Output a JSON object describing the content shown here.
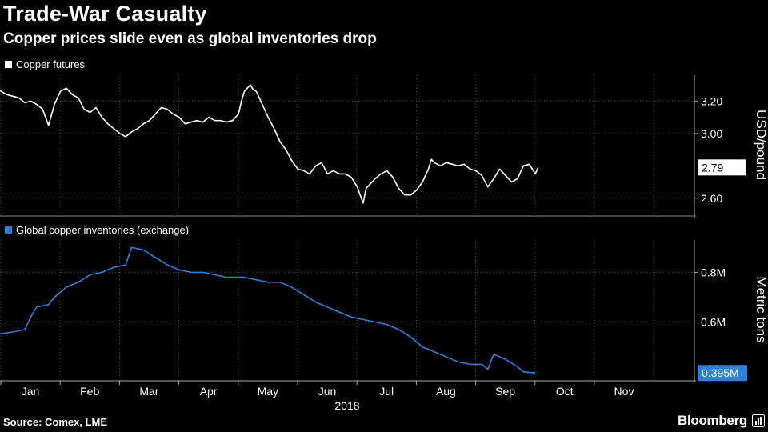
{
  "header": {
    "title": "Trade-War Casualty",
    "subtitle": "Copper prices slide even as global inventories drop"
  },
  "footer": {
    "source": "Source: Comex, LME",
    "brand": "Bloomberg"
  },
  "colors": {
    "background": "#000000",
    "price_line": "#ffffff",
    "inventory_line": "#2f80d8",
    "grid": "#555555"
  },
  "chart_data": [
    {
      "type": "line",
      "series": [
        {
          "name": "Copper futures"
        }
      ],
      "ylabel": "USD/pound",
      "yticks": [
        2.6,
        3.0,
        3.2
      ],
      "ytick_labels": [
        "2.60",
        "3.00",
        "3.20"
      ],
      "ylim": [
        2.5,
        3.36
      ],
      "last_value": 2.79,
      "last_value_label": "2.79",
      "grid": true,
      "points": [
        [
          0.0,
          3.29
        ],
        [
          0.1,
          3.26
        ],
        [
          0.2,
          3.24
        ],
        [
          0.3,
          3.23
        ],
        [
          0.4,
          3.22
        ],
        [
          0.5,
          3.19
        ],
        [
          0.6,
          3.2
        ],
        [
          0.7,
          3.18
        ],
        [
          0.8,
          3.15
        ],
        [
          0.9,
          3.05
        ],
        [
          1.0,
          3.18
        ],
        [
          1.1,
          3.26
        ],
        [
          1.2,
          3.28
        ],
        [
          1.3,
          3.24
        ],
        [
          1.4,
          3.22
        ],
        [
          1.5,
          3.15
        ],
        [
          1.6,
          3.13
        ],
        [
          1.7,
          3.16
        ],
        [
          1.8,
          3.1
        ],
        [
          1.9,
          3.06
        ],
        [
          2.0,
          3.03
        ],
        [
          2.1,
          3.0
        ],
        [
          2.2,
          2.98
        ],
        [
          2.3,
          3.01
        ],
        [
          2.4,
          3.03
        ],
        [
          2.5,
          3.06
        ],
        [
          2.6,
          3.08
        ],
        [
          2.7,
          3.12
        ],
        [
          2.8,
          3.16
        ],
        [
          2.9,
          3.15
        ],
        [
          3.0,
          3.12
        ],
        [
          3.1,
          3.1
        ],
        [
          3.2,
          3.06
        ],
        [
          3.3,
          3.07
        ],
        [
          3.4,
          3.08
        ],
        [
          3.5,
          3.07
        ],
        [
          3.6,
          3.1
        ],
        [
          3.7,
          3.08
        ],
        [
          3.8,
          3.08
        ],
        [
          3.9,
          3.07
        ],
        [
          4.0,
          3.08
        ],
        [
          4.1,
          3.12
        ],
        [
          4.15,
          3.2
        ],
        [
          4.2,
          3.26
        ],
        [
          4.25,
          3.28
        ],
        [
          4.3,
          3.3
        ],
        [
          4.35,
          3.27
        ],
        [
          4.4,
          3.26
        ],
        [
          4.5,
          3.18
        ],
        [
          4.6,
          3.1
        ],
        [
          4.7,
          3.03
        ],
        [
          4.8,
          2.95
        ],
        [
          4.9,
          2.9
        ],
        [
          5.0,
          2.83
        ],
        [
          5.1,
          2.78
        ],
        [
          5.2,
          2.77
        ],
        [
          5.3,
          2.75
        ],
        [
          5.4,
          2.8
        ],
        [
          5.5,
          2.82
        ],
        [
          5.6,
          2.75
        ],
        [
          5.7,
          2.77
        ],
        [
          5.8,
          2.75
        ],
        [
          5.9,
          2.75
        ],
        [
          6.0,
          2.73
        ],
        [
          6.1,
          2.67
        ],
        [
          6.2,
          2.57
        ],
        [
          6.25,
          2.66
        ],
        [
          6.3,
          2.68
        ],
        [
          6.4,
          2.72
        ],
        [
          6.5,
          2.75
        ],
        [
          6.6,
          2.77
        ],
        [
          6.7,
          2.73
        ],
        [
          6.8,
          2.66
        ],
        [
          6.9,
          2.62
        ],
        [
          7.0,
          2.62
        ],
        [
          7.1,
          2.65
        ],
        [
          7.2,
          2.7
        ],
        [
          7.3,
          2.78
        ],
        [
          7.35,
          2.84
        ],
        [
          7.4,
          2.82
        ],
        [
          7.5,
          2.8
        ],
        [
          7.6,
          2.82
        ],
        [
          7.7,
          2.81
        ],
        [
          7.8,
          2.8
        ],
        [
          7.9,
          2.81
        ],
        [
          8.0,
          2.78
        ],
        [
          8.1,
          2.77
        ],
        [
          8.2,
          2.74
        ],
        [
          8.3,
          2.67
        ],
        [
          8.4,
          2.72
        ],
        [
          8.5,
          2.78
        ],
        [
          8.6,
          2.74
        ],
        [
          8.7,
          2.7
        ],
        [
          8.8,
          2.72
        ],
        [
          8.9,
          2.8
        ],
        [
          9.0,
          2.81
        ],
        [
          9.1,
          2.75
        ],
        [
          9.15,
          2.79
        ]
      ]
    },
    {
      "type": "line",
      "series": [
        {
          "name": "Global copper inventories (exchange)"
        }
      ],
      "ylabel": "Metric tons",
      "yticks": [
        0.6,
        0.8
      ],
      "ytick_labels": [
        "0.6M",
        "0.8M"
      ],
      "ylim": [
        0.37,
        0.93
      ],
      "last_value": 0.395,
      "last_value_label": "0.395M",
      "grid": true,
      "points": [
        [
          0.0,
          0.55
        ],
        [
          0.3,
          0.56
        ],
        [
          0.5,
          0.57
        ],
        [
          0.6,
          0.62
        ],
        [
          0.7,
          0.66
        ],
        [
          0.9,
          0.67
        ],
        [
          1.0,
          0.7
        ],
        [
          1.2,
          0.74
        ],
        [
          1.4,
          0.76
        ],
        [
          1.6,
          0.79
        ],
        [
          1.8,
          0.8
        ],
        [
          2.0,
          0.82
        ],
        [
          2.2,
          0.83
        ],
        [
          2.3,
          0.9
        ],
        [
          2.5,
          0.89
        ],
        [
          2.7,
          0.86
        ],
        [
          2.9,
          0.83
        ],
        [
          3.1,
          0.81
        ],
        [
          3.3,
          0.8
        ],
        [
          3.5,
          0.8
        ],
        [
          3.7,
          0.79
        ],
        [
          3.9,
          0.78
        ],
        [
          4.0,
          0.78
        ],
        [
          4.2,
          0.78
        ],
        [
          4.4,
          0.77
        ],
        [
          4.6,
          0.76
        ],
        [
          4.8,
          0.76
        ],
        [
          5.0,
          0.74
        ],
        [
          5.2,
          0.71
        ],
        [
          5.4,
          0.68
        ],
        [
          5.6,
          0.66
        ],
        [
          5.8,
          0.64
        ],
        [
          6.0,
          0.62
        ],
        [
          6.2,
          0.61
        ],
        [
          6.4,
          0.6
        ],
        [
          6.6,
          0.59
        ],
        [
          6.8,
          0.57
        ],
        [
          7.0,
          0.54
        ],
        [
          7.2,
          0.5
        ],
        [
          7.4,
          0.48
        ],
        [
          7.6,
          0.46
        ],
        [
          7.8,
          0.44
        ],
        [
          8.0,
          0.43
        ],
        [
          8.2,
          0.43
        ],
        [
          8.3,
          0.41
        ],
        [
          8.4,
          0.47
        ],
        [
          8.6,
          0.45
        ],
        [
          8.8,
          0.42
        ],
        [
          8.9,
          0.4
        ],
        [
          9.1,
          0.395
        ]
      ]
    }
  ],
  "x_axis": {
    "months": [
      "Jan",
      "Feb",
      "Mar",
      "Apr",
      "May",
      "Jun",
      "Jul",
      "Aug",
      "Sep",
      "Oct",
      "Nov"
    ],
    "year": "2018"
  }
}
